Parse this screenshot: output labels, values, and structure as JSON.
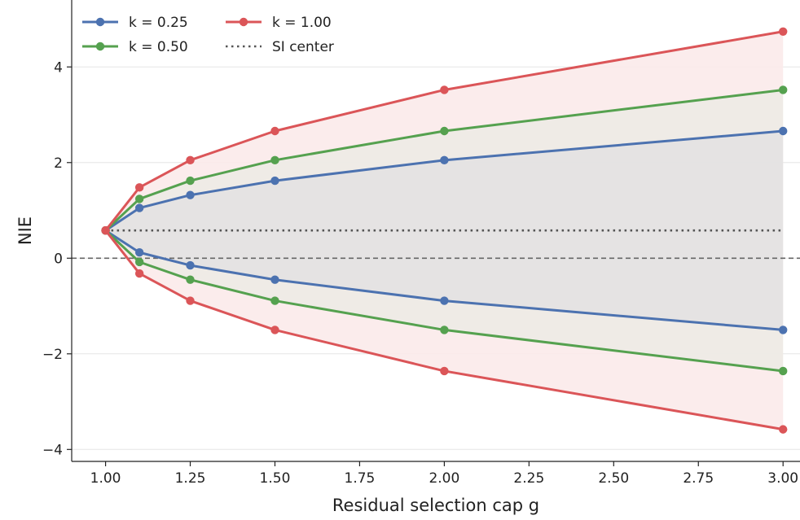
{
  "chart_data": {
    "type": "line",
    "xlabel": "Residual selection cap g",
    "ylabel": "NIE",
    "xlim": [
      0.9,
      3.05
    ],
    "ylim": [
      -4.25,
      5.4
    ],
    "xticks": [
      "1.00",
      "1.25",
      "1.50",
      "1.75",
      "2.00",
      "2.25",
      "2.50",
      "2.75",
      "3.00"
    ],
    "yticks": [
      "−4",
      "−2",
      "0",
      "2",
      "4"
    ],
    "grid": "horizontal",
    "legend_position": "top-left",
    "x": [
      1.0,
      1.1,
      1.25,
      1.5,
      2.0,
      3.0
    ],
    "center_value": 0.58,
    "reference_line": 0,
    "series": [
      {
        "name": "k = 0.25",
        "color": "#4c72b0",
        "upper": [
          0.58,
          1.05,
          1.32,
          1.62,
          2.05,
          2.66
        ],
        "lower": [
          0.58,
          0.12,
          -0.15,
          -0.45,
          -0.89,
          -1.5
        ]
      },
      {
        "name": "k = 0.50",
        "color": "#55a14f",
        "upper": [
          0.58,
          1.24,
          1.62,
          2.05,
          2.66,
          3.52
        ],
        "lower": [
          0.58,
          -0.08,
          -0.45,
          -0.89,
          -1.5,
          -2.36
        ]
      },
      {
        "name": "k = 1.00",
        "color": "#db5558",
        "upper": [
          0.58,
          1.48,
          2.05,
          2.66,
          3.52,
          4.74
        ],
        "lower": [
          0.58,
          -0.32,
          -0.89,
          -1.5,
          -2.36,
          -3.58
        ]
      }
    ],
    "center_series": {
      "name": "SI center",
      "color": "#555555"
    }
  }
}
